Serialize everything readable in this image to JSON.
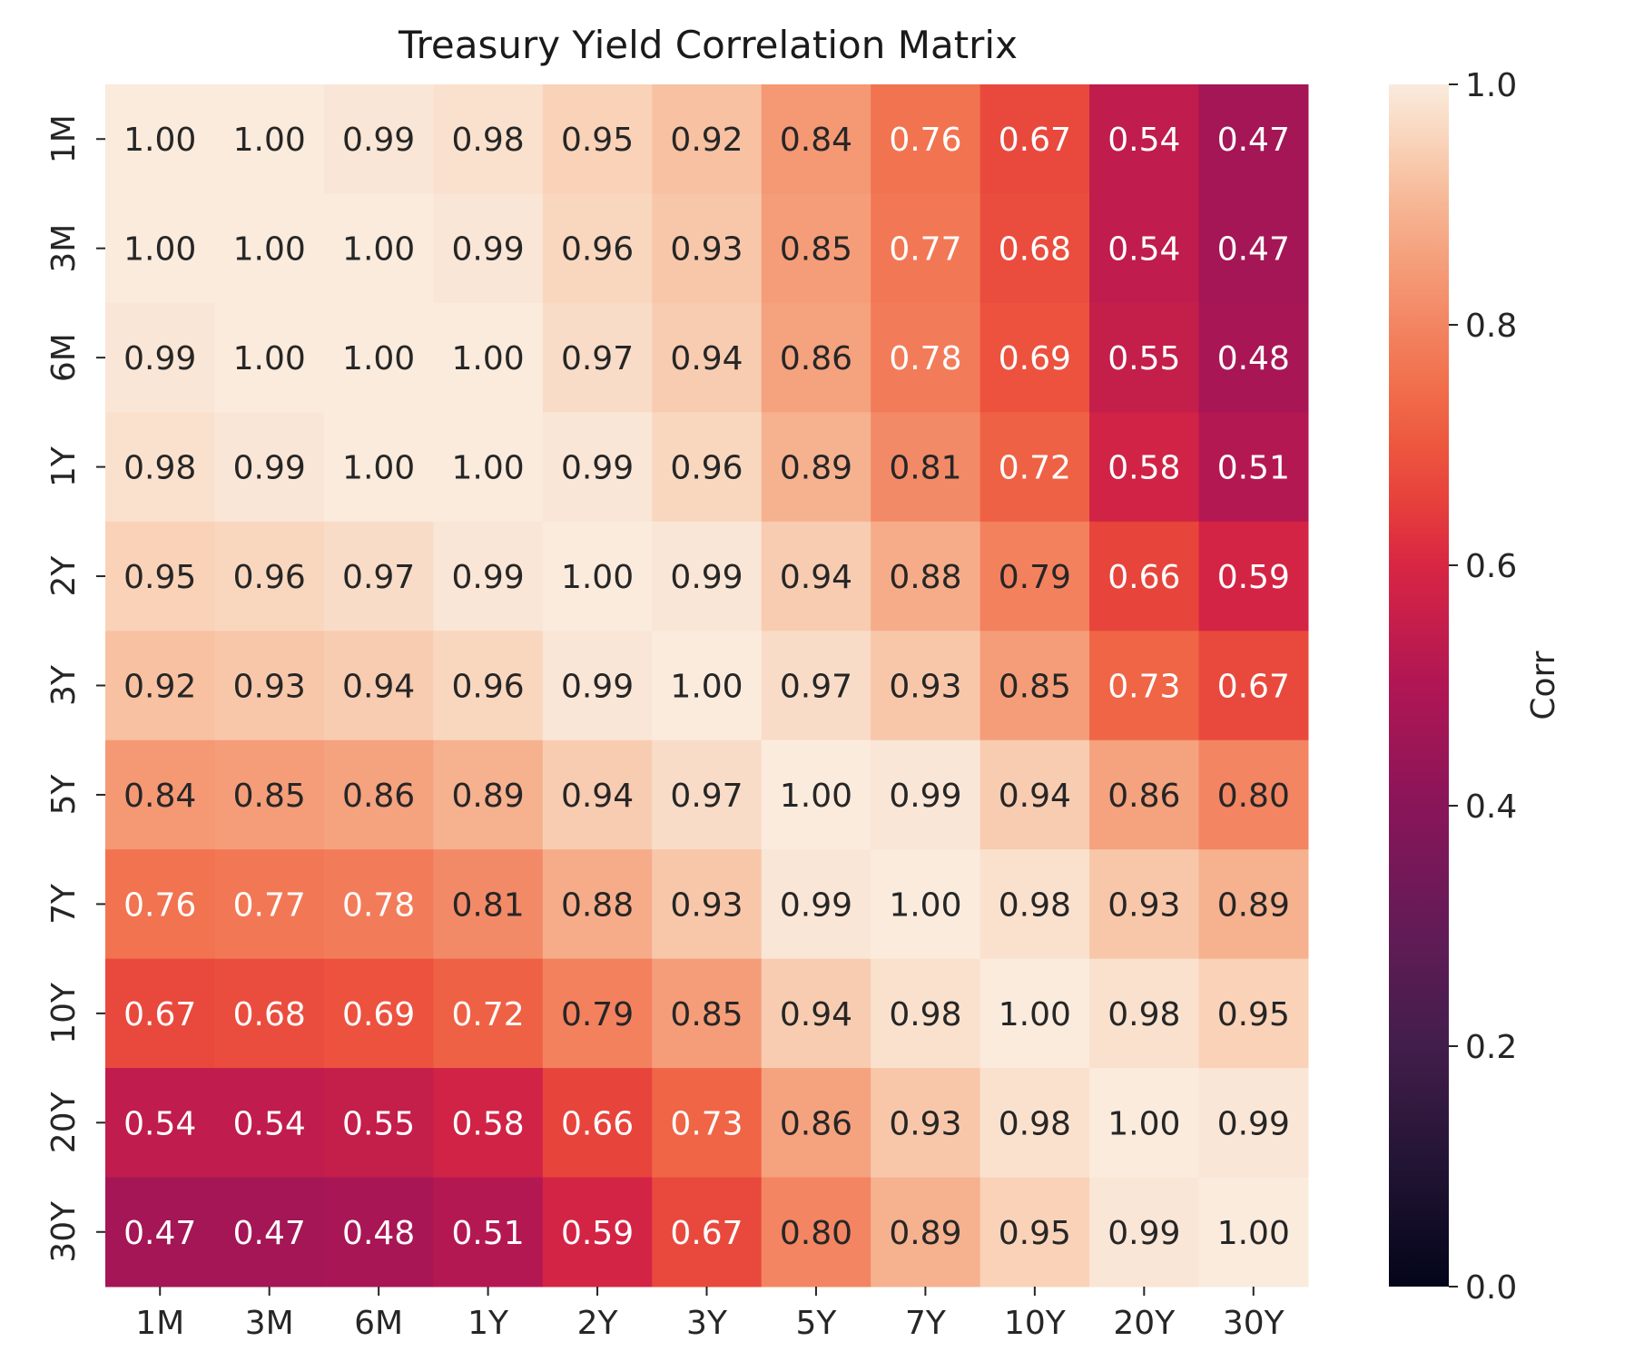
{
  "chart_data": {
    "type": "heatmap",
    "title": "Treasury Yield Correlation Matrix",
    "categories": [
      "1M",
      "3M",
      "6M",
      "1Y",
      "2Y",
      "3Y",
      "5Y",
      "7Y",
      "10Y",
      "20Y",
      "30Y"
    ],
    "values": [
      [
        1.0,
        1.0,
        0.99,
        0.98,
        0.95,
        0.92,
        0.84,
        0.76,
        0.67,
        0.54,
        0.47
      ],
      [
        1.0,
        1.0,
        1.0,
        0.99,
        0.96,
        0.93,
        0.85,
        0.77,
        0.68,
        0.54,
        0.47
      ],
      [
        0.99,
        1.0,
        1.0,
        1.0,
        0.97,
        0.94,
        0.86,
        0.78,
        0.69,
        0.55,
        0.48
      ],
      [
        0.98,
        0.99,
        1.0,
        1.0,
        0.99,
        0.96,
        0.89,
        0.81,
        0.72,
        0.58,
        0.51
      ],
      [
        0.95,
        0.96,
        0.97,
        0.99,
        1.0,
        0.99,
        0.94,
        0.88,
        0.79,
        0.66,
        0.59
      ],
      [
        0.92,
        0.93,
        0.94,
        0.96,
        0.99,
        1.0,
        0.97,
        0.93,
        0.85,
        0.73,
        0.67
      ],
      [
        0.84,
        0.85,
        0.86,
        0.89,
        0.94,
        0.97,
        1.0,
        0.99,
        0.94,
        0.86,
        0.8
      ],
      [
        0.76,
        0.77,
        0.78,
        0.81,
        0.88,
        0.93,
        0.99,
        1.0,
        0.98,
        0.93,
        0.89
      ],
      [
        0.67,
        0.68,
        0.69,
        0.72,
        0.79,
        0.85,
        0.94,
        0.98,
        1.0,
        0.98,
        0.95
      ],
      [
        0.54,
        0.54,
        0.55,
        0.58,
        0.66,
        0.73,
        0.86,
        0.93,
        0.98,
        1.0,
        0.99
      ],
      [
        0.47,
        0.47,
        0.48,
        0.51,
        0.59,
        0.67,
        0.8,
        0.89,
        0.95,
        0.99,
        1.0
      ]
    ],
    "value_range": [
      0.0,
      1.0
    ],
    "colorbar": {
      "label": "Corr",
      "ticks": [
        "0.0",
        "0.2",
        "0.4",
        "0.6",
        "0.8",
        "1.0"
      ],
      "colormap": "rocket"
    },
    "annotations": "cell values shown with two decimals",
    "grid": false
  }
}
